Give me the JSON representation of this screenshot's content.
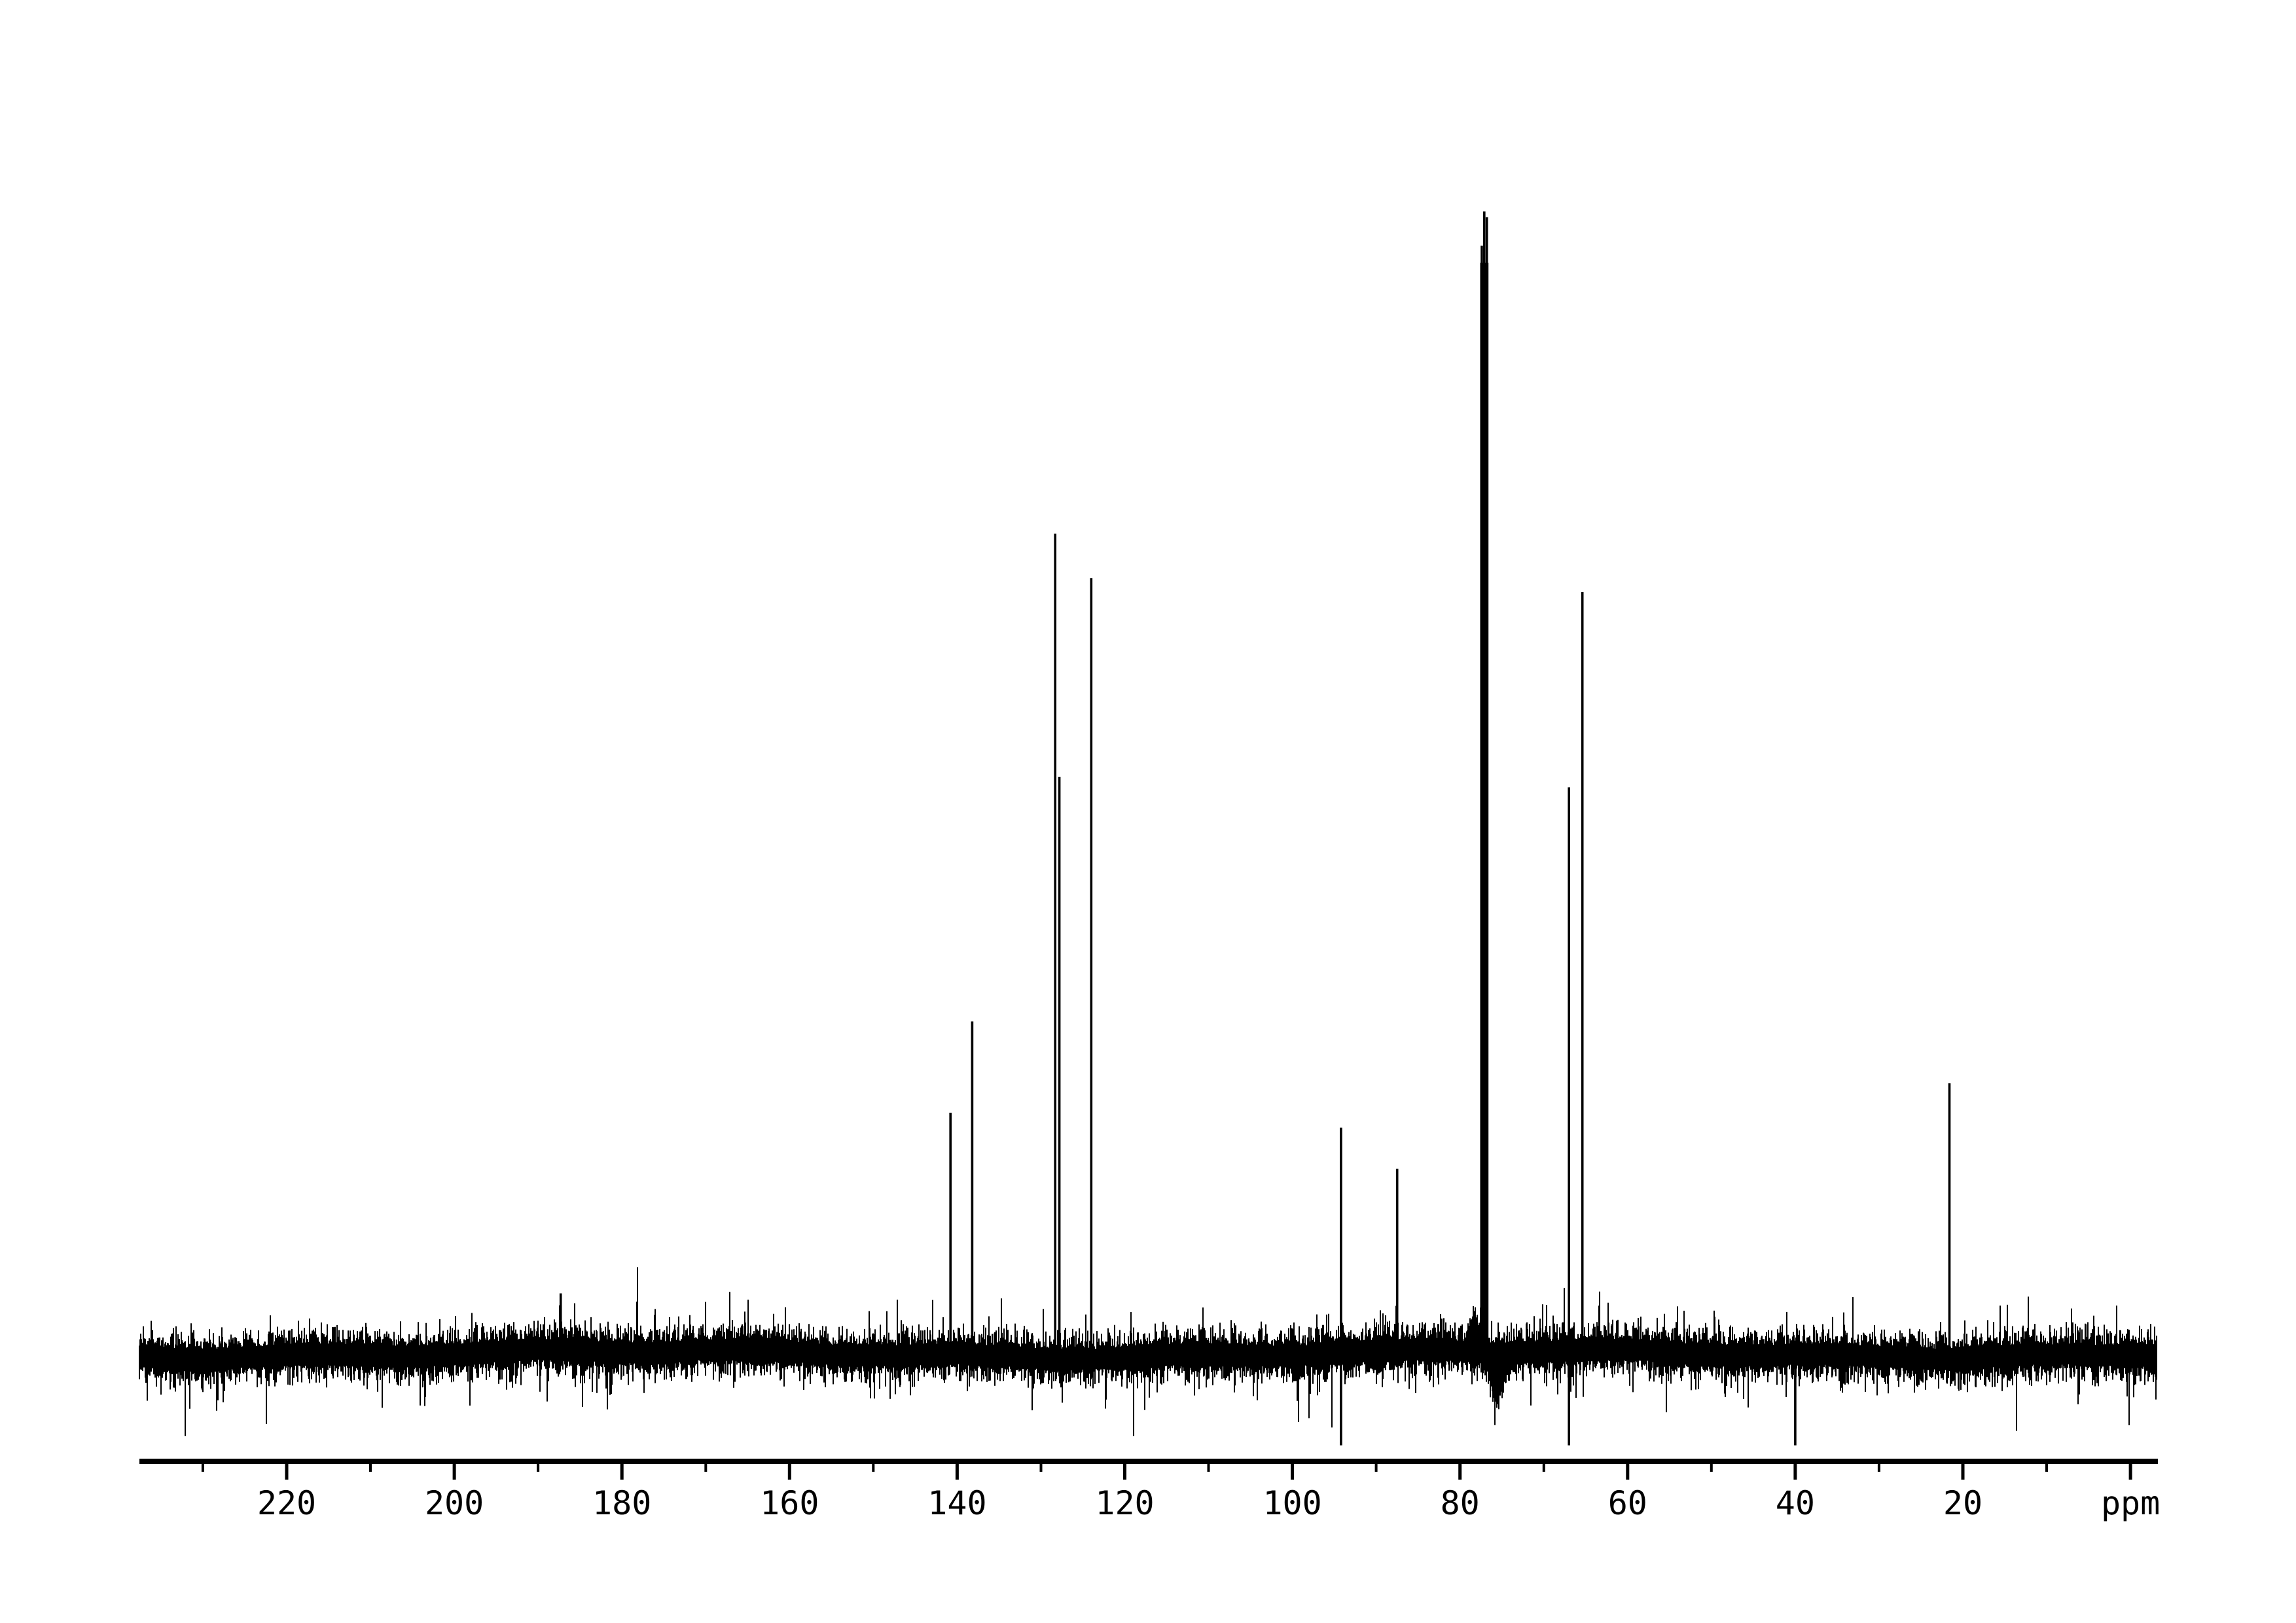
{
  "chart_data": {
    "type": "line",
    "subtype": "nmr-spectrum-13C",
    "title": "",
    "xlabel": "ppm",
    "ylabel": "",
    "trace_color": "#000000",
    "background_color": "#ffffff",
    "grid": false,
    "legend": false,
    "x_axis": {
      "unit_label": "ppm",
      "direction": "ppm decreasing left to right",
      "ppm_left_edge": 237.6,
      "ppm_right_edge": -3.3,
      "major_tick_step": 20,
      "minor_tick_step": 10,
      "major_tick_ppm": [
        220,
        200,
        180,
        160,
        140,
        120,
        100,
        80,
        60,
        40,
        20,
        0
      ],
      "major_tick_labels": [
        "220",
        "200",
        "180",
        "160",
        "140",
        "120",
        "100",
        "80",
        "60",
        "40",
        "20",
        ""
      ],
      "minor_tick_ppm": [
        230,
        210,
        190,
        170,
        150,
        130,
        110,
        90,
        70,
        50,
        30,
        10
      ]
    },
    "peaks": [
      {
        "ppm": 187.3,
        "rel_intensity": 0.053,
        "neg_intensity": 0
      },
      {
        "ppm": 140.8,
        "rel_intensity": 0.211,
        "neg_intensity": 0
      },
      {
        "ppm": 138.2,
        "rel_intensity": 0.291,
        "neg_intensity": 0
      },
      {
        "ppm": 128.3,
        "rel_intensity": 0.718,
        "neg_intensity": 0
      },
      {
        "ppm": 127.8,
        "rel_intensity": 0.505,
        "neg_intensity": 0
      },
      {
        "ppm": 124.0,
        "rel_intensity": 0.679,
        "neg_intensity": 0
      },
      {
        "ppm": 94.2,
        "rel_intensity": 0.198,
        "neg_intensity": 0.08
      },
      {
        "ppm": 87.5,
        "rel_intensity": 0.162,
        "neg_intensity": 0
      },
      {
        "ppm": 77.4,
        "rel_intensity": 0.97,
        "neg_intensity": 0
      },
      {
        "ppm": 77.1,
        "rel_intensity": 1.0,
        "neg_intensity": 0
      },
      {
        "ppm": 76.8,
        "rel_intensity": 0.995,
        "neg_intensity": 0
      },
      {
        "ppm": 67.0,
        "rel_intensity": 0.496,
        "neg_intensity": 0.08
      },
      {
        "ppm": 65.4,
        "rel_intensity": 0.667,
        "neg_intensity": 0
      },
      {
        "ppm": 40.0,
        "rel_intensity": 0.0,
        "neg_intensity": 0.08
      },
      {
        "ppm": 21.6,
        "rel_intensity": 0.237,
        "neg_intensity": 0
      }
    ],
    "solvent_cluster_ppm": [
      77.4,
      77.1,
      76.8
    ],
    "noise": {
      "band_halfwidth_rel": 0.028,
      "tooth_max_rel": 0.032,
      "spike_max_rel": 0.06
    }
  }
}
